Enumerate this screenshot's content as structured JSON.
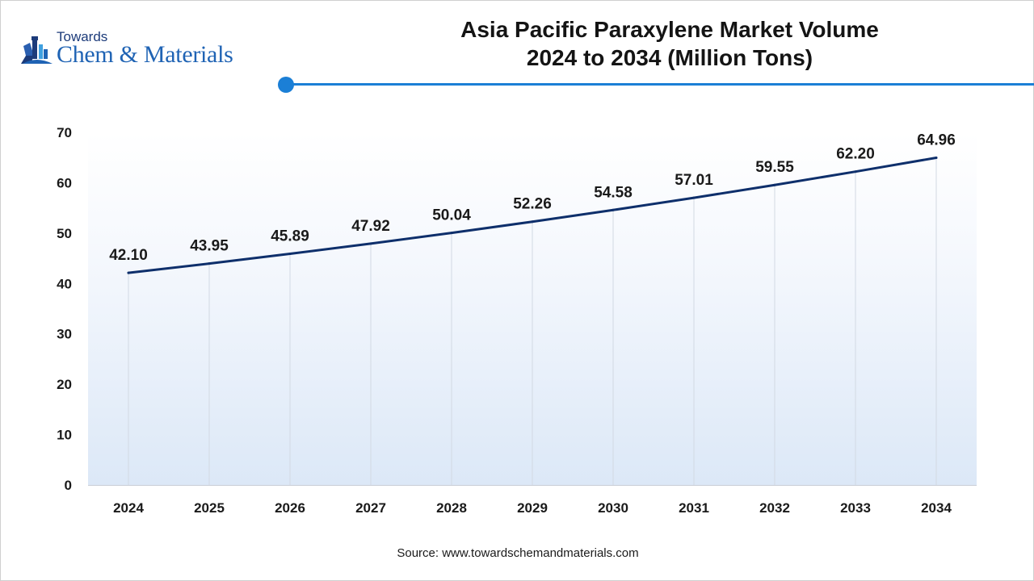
{
  "brand": {
    "top_text": "Towards",
    "main_text": "Chem & Materials",
    "icon": "flask-lab-icon"
  },
  "title": {
    "line1": "Asia Pacific Paraxylene Market Volume",
    "line2": "2024 to 2034 (Million Tons)"
  },
  "colors": {
    "accent": "#1b7fd6",
    "line": "#0e2f6b",
    "brand_blue": "#1f63b4",
    "brand_dark": "#1c3b7a"
  },
  "source": "Source: www.towardschemandmaterials.com",
  "chart_data": {
    "type": "line",
    "title": "Asia Pacific Paraxylene Market Volume 2024 to 2034 (Million Tons)",
    "xlabel": "",
    "ylabel": "",
    "categories": [
      "2024",
      "2025",
      "2026",
      "2027",
      "2028",
      "2029",
      "2030",
      "2031",
      "2032",
      "2033",
      "2034"
    ],
    "values": [
      42.1,
      43.95,
      45.89,
      47.92,
      50.04,
      52.26,
      54.58,
      57.01,
      59.55,
      62.2,
      64.96
    ],
    "value_labels": [
      "42.10",
      "43.95",
      "45.89",
      "47.92",
      "50.04",
      "52.26",
      "54.58",
      "57.01",
      "59.55",
      "62.20",
      "64.96"
    ],
    "ylim": [
      0,
      70
    ],
    "yticks": [
      0,
      10,
      20,
      30,
      40,
      50,
      60,
      70
    ],
    "grid": "vertical",
    "legend": "none"
  }
}
